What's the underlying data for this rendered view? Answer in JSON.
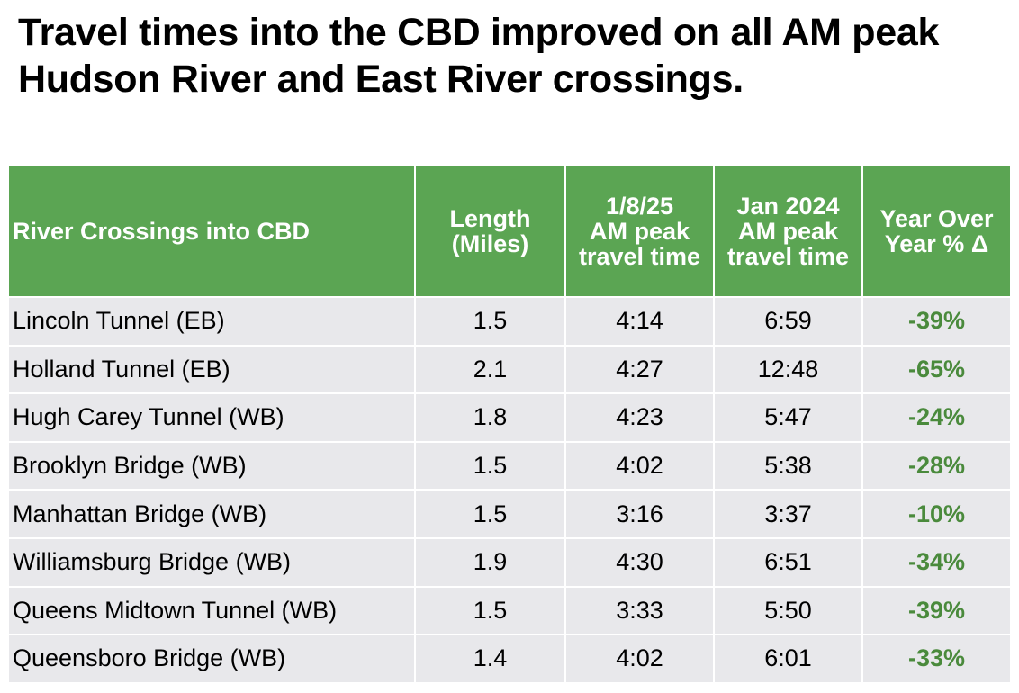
{
  "title": "Travel times into the CBD improved on all AM peak Hudson River and East River crossings.",
  "chart_data": {
    "type": "table",
    "columns": [
      [
        "River Crossings into CBD"
      ],
      [
        "Length",
        "(Miles)"
      ],
      [
        "1/8/25",
        "AM peak",
        "travel time"
      ],
      [
        "Jan 2024",
        "AM peak",
        "travel time"
      ],
      [
        "Year Over",
        "Year % Δ"
      ]
    ],
    "rows": [
      [
        "Lincoln Tunnel (EB)",
        "1.5",
        "4:14",
        "6:59",
        "-39%"
      ],
      [
        "Holland Tunnel (EB)",
        "2.1",
        "4:27",
        "12:48",
        "-65%"
      ],
      [
        "Hugh Carey Tunnel (WB)",
        "1.8",
        "4:23",
        "5:47",
        "-24%"
      ],
      [
        "Brooklyn Bridge (WB)",
        "1.5",
        "4:02",
        "5:38",
        "-28%"
      ],
      [
        "Manhattan Bridge (WB)",
        "1.5",
        "3:16",
        "3:37",
        "-10%"
      ],
      [
        "Williamsburg Bridge (WB)",
        "1.9",
        "4:30",
        "6:51",
        "-34%"
      ],
      [
        "Queens Midtown Tunnel (WB)",
        "1.5",
        "3:33",
        "5:50",
        "-39%"
      ],
      [
        "Queensboro Bridge (WB)",
        "1.4",
        "4:02",
        "6:01",
        "-33%"
      ]
    ]
  },
  "colors": {
    "header_bg": "#5ba553",
    "row_bg": "#e8e8eb",
    "pct_text": "#4a8a3c"
  }
}
